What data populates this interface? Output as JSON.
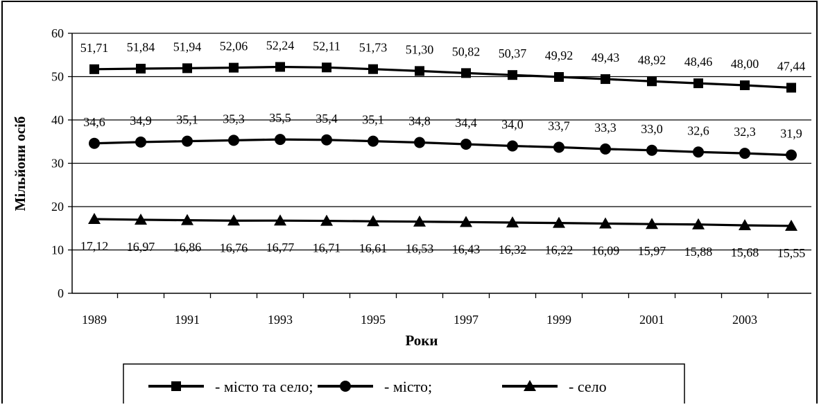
{
  "chart_data": {
    "type": "line",
    "title": "",
    "xlabel": "Роки",
    "ylabel": "Мільйони осіб",
    "x": [
      1989,
      1990,
      1991,
      1992,
      1993,
      1994,
      1995,
      1996,
      1997,
      1998,
      1999,
      2000,
      2001,
      2002,
      2003,
      2004
    ],
    "x_tick_labels": [
      "1989",
      "1991",
      "1993",
      "1995",
      "1997",
      "1999",
      "2001",
      "2003"
    ],
    "ylim": [
      0,
      60
    ],
    "y_ticks": [
      0,
      10,
      20,
      30,
      40,
      50,
      60
    ],
    "grid": "horizontal",
    "legend_position": "bottom",
    "series": [
      {
        "name": "- місто та село;",
        "marker": "square",
        "values": [
          51.71,
          51.84,
          51.94,
          52.06,
          52.24,
          52.11,
          51.73,
          51.3,
          50.82,
          50.37,
          49.92,
          49.43,
          48.92,
          48.46,
          48.0,
          47.44
        ],
        "labels": [
          "51,71",
          "51,84",
          "51,94",
          "52,06",
          "52,24",
          "52,11",
          "51,73",
          "51,30",
          "50,82",
          "50,37",
          "49,92",
          "49,43",
          "48,92",
          "48,46",
          "48,00",
          "47,44"
        ]
      },
      {
        "name": "- місто;",
        "marker": "circle",
        "values": [
          34.6,
          34.9,
          35.1,
          35.3,
          35.5,
          35.4,
          35.1,
          34.8,
          34.4,
          34.0,
          33.7,
          33.3,
          33.0,
          32.6,
          32.3,
          31.9
        ],
        "labels": [
          "34,6",
          "34,9",
          "35,1",
          "35,3",
          "35,5",
          "35,4",
          "35,1",
          "34,8",
          "34,4",
          "34,0",
          "33,7",
          "33,3",
          "33,0",
          "32,6",
          "32,3",
          "31,9"
        ]
      },
      {
        "name": "- село",
        "marker": "triangle",
        "values": [
          17.12,
          16.97,
          16.86,
          16.76,
          16.77,
          16.71,
          16.61,
          16.53,
          16.43,
          16.32,
          16.22,
          16.09,
          15.97,
          15.88,
          15.68,
          15.55
        ],
        "labels": [
          "17,12",
          "16,97",
          "16,86",
          "16,76",
          "16,77",
          "16,71",
          "16,61",
          "16,53",
          "16,43",
          "16,32",
          "16,22",
          "16,09",
          "15,97",
          "15,88",
          "15,68",
          "15,55"
        ]
      }
    ]
  }
}
